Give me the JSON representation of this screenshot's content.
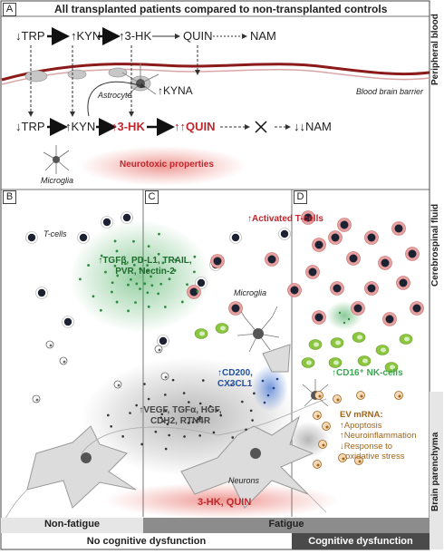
{
  "panels": {
    "a": {
      "letter": "A",
      "title": "All transplanted patients compared to non-transplanted controls",
      "peripheral_row": {
        "trp": "↓TRP",
        "kyn": "↑KYN",
        "hk": "↑3-HK",
        "quin": "QUIN",
        "nam": "NAM"
      },
      "bbb_label": "Blood brain barrier",
      "astrocyte_label": "Astrocyte",
      "kyna_label": "↑KYNA",
      "csf_row": {
        "trp": "↓TRP",
        "kyn": "↑KYN",
        "hk": "↑3-HK",
        "quin": "↑↑QUIN",
        "nam": "↓↓NAM"
      },
      "microglia_label": "Microglia",
      "neurotoxic_label": "Neurotoxic properties"
    },
    "b": {
      "letter": "B",
      "tcells_label": "T-cells",
      "factors": "↑TGFβ, PD-L1, TRAIL, PVR, Nectin-2"
    },
    "c": {
      "letter": "C",
      "activated_tcells": "↑Activated T-cells",
      "microglia_label": "Microglia",
      "cd200": "↑CD200, CX3CL1",
      "vegf": "↑VEGF, TGFα, HGF, CDH2, RTN4R",
      "neurons_label": "Neurons",
      "hk_quin": "3-HK, QUIN"
    },
    "d": {
      "letter": "D",
      "nk_cells": "↑CD16⁺ NK-cells",
      "ev_title": "EV mRNA:",
      "ev_items": [
        "↑Apoptosis",
        "↑Neuroinflammation",
        "↓Response to",
        "oxidative stress"
      ]
    }
  },
  "side_labels": {
    "peripheral_blood": "Peripheral blood",
    "csf": "Cerebrospinal fluid",
    "parenchyma": "Brain parenchyma"
  },
  "bottom": {
    "non_fatigue": "Non-fatigue",
    "fatigue": "Fatigue",
    "no_cog": "No cognitive dysfunction",
    "cog": "Cognitive dysfunction"
  },
  "colors": {
    "bbb": "#8b1a1a",
    "quin_red": "#c0272d",
    "tcell_ring": "#e8a0a0",
    "green_cloud": "#3aa651",
    "blue_cloud": "#3a6fd0",
    "ev_text": "#a0651a",
    "nk_green": "#8cc63f"
  }
}
